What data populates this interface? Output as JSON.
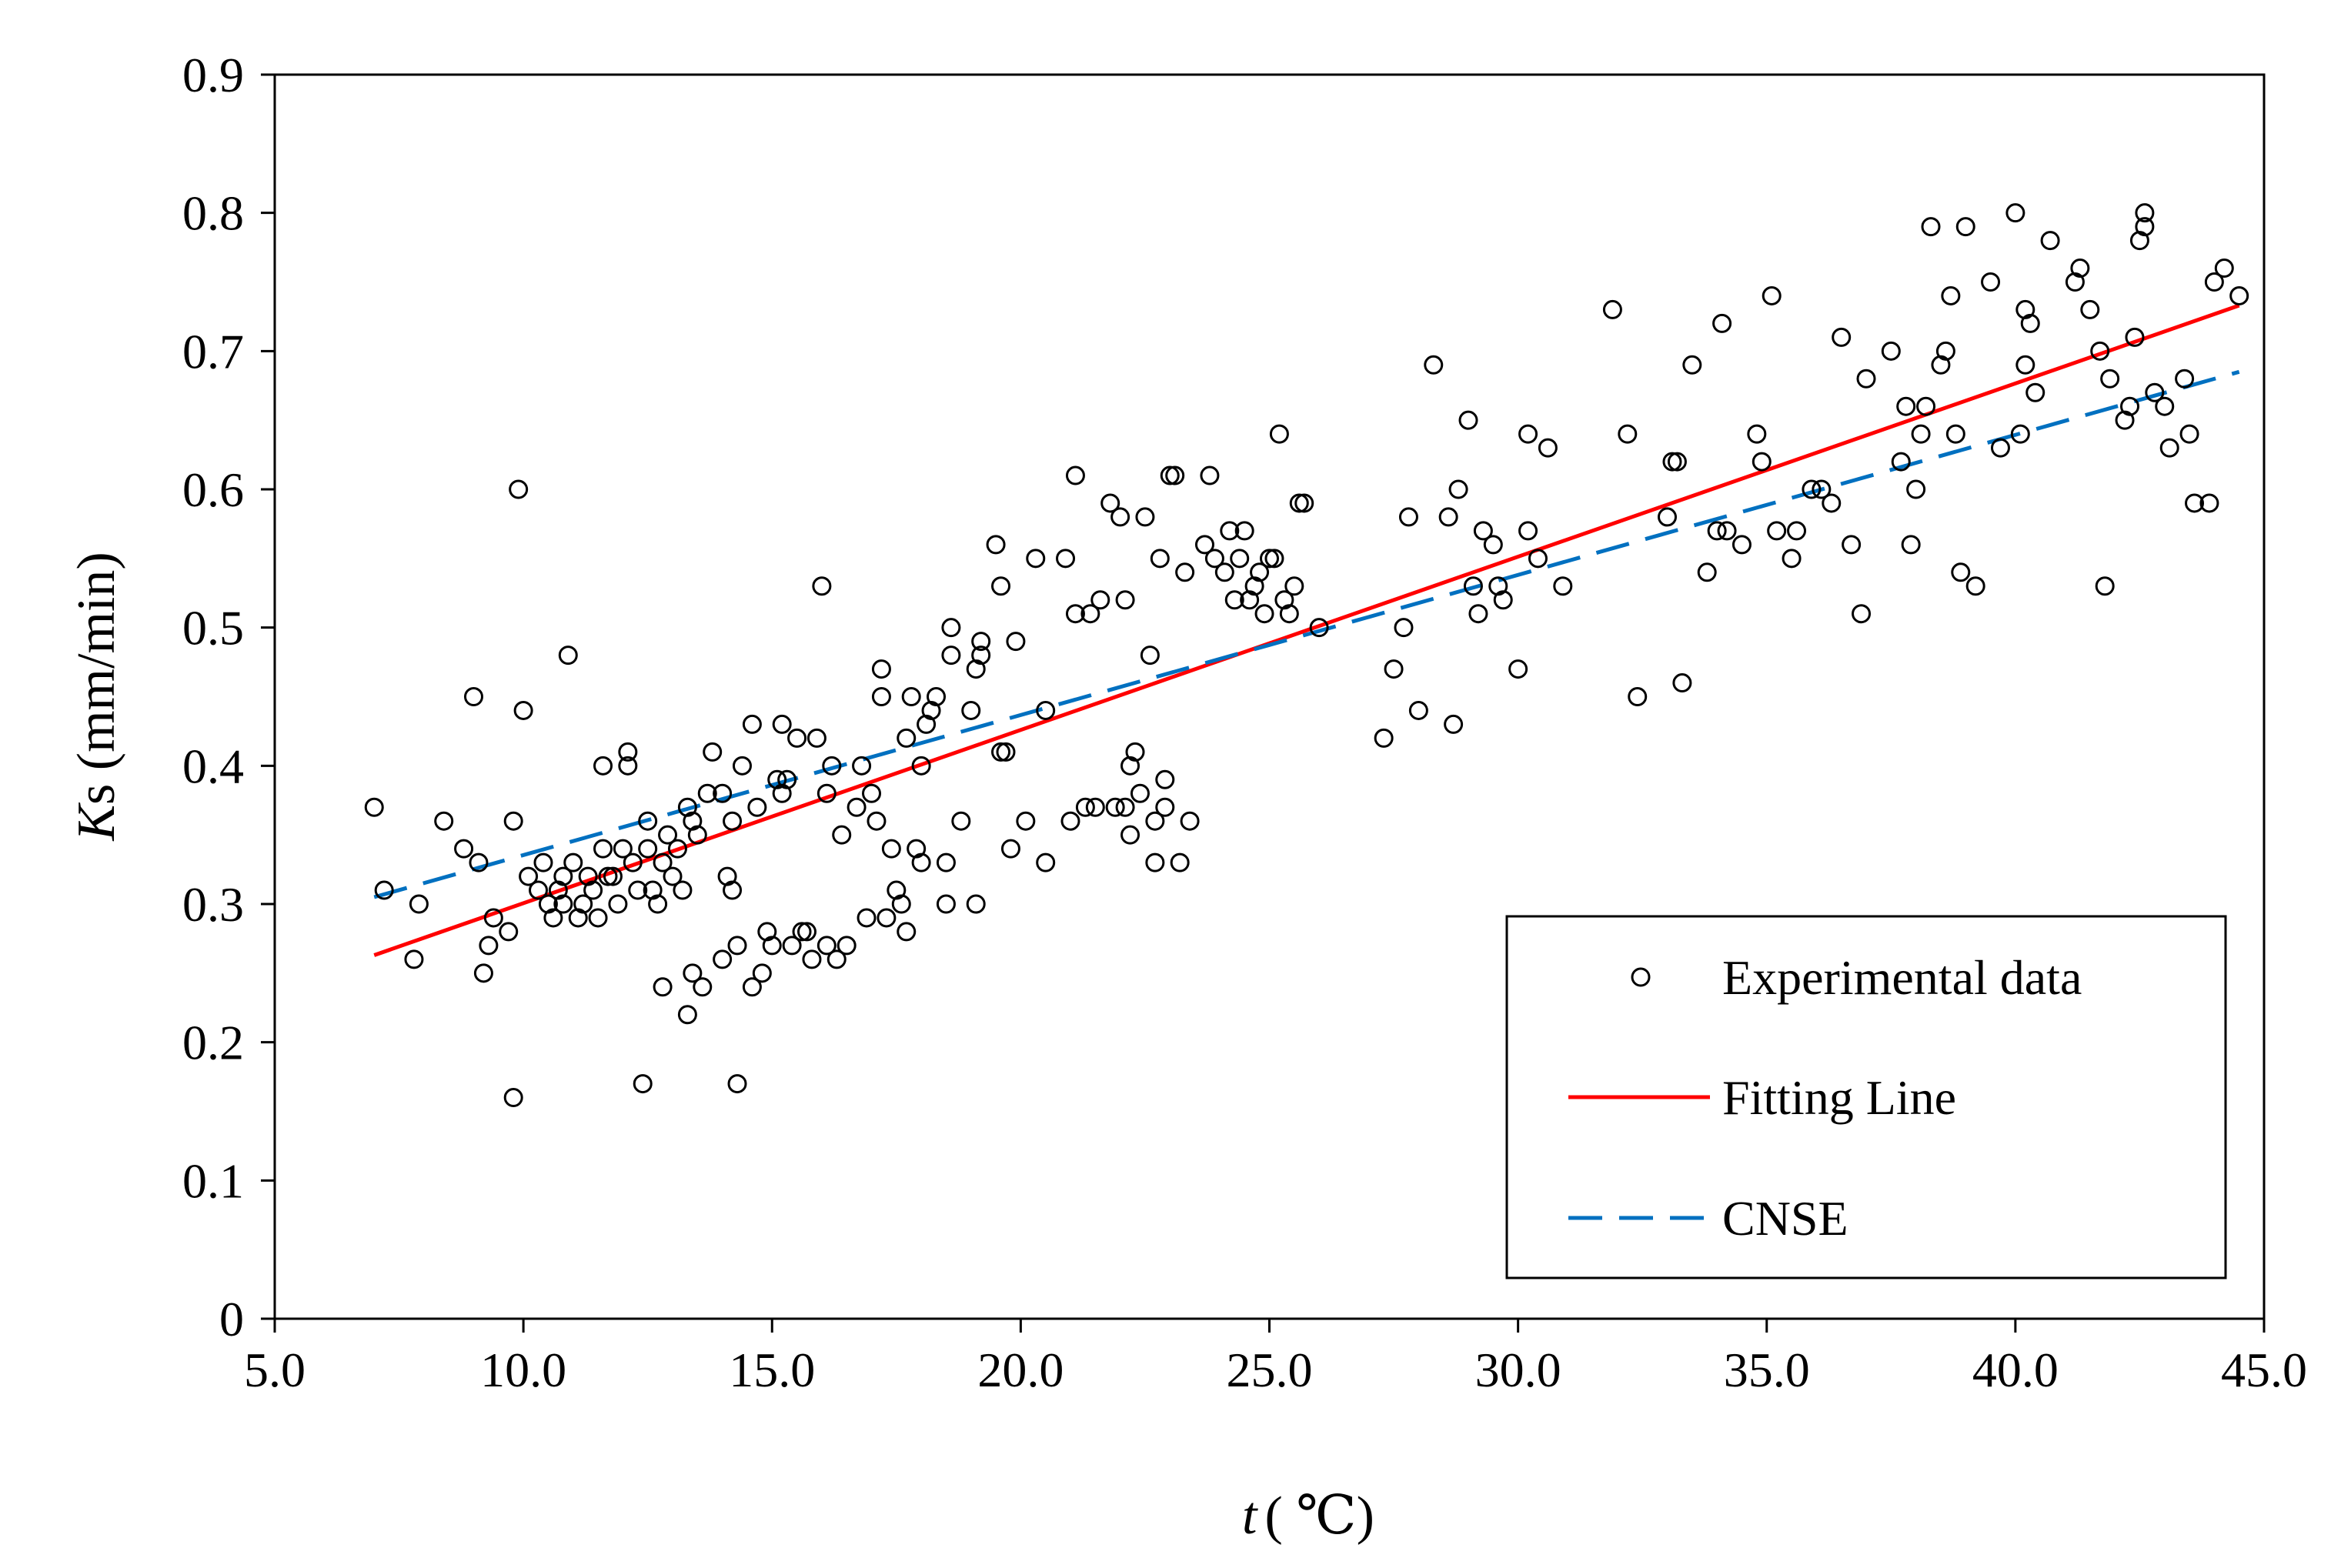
{
  "chart_data": {
    "type": "scatter",
    "title": "",
    "xlabel": {
      "italic": "t",
      "rest": "( ℃)"
    },
    "ylabel": {
      "italic": "K",
      "rest": "s (mm/min)"
    },
    "xlim": [
      5.0,
      45.0
    ],
    "ylim": [
      0,
      0.9
    ],
    "x_ticks": [
      "5.0",
      "10.0",
      "15.0",
      "20.0",
      "25.0",
      "30.0",
      "35.0",
      "40.0",
      "45.0"
    ],
    "y_ticks": [
      "0",
      "0.1",
      "0.2",
      "0.3",
      "0.4",
      "0.5",
      "0.6",
      "0.7",
      "0.8",
      "0.9"
    ],
    "grid": false,
    "legend_position": "bottom-right",
    "colors": {
      "scatter": "#000000",
      "fit": "#ff0000",
      "cnse": "#0070c0",
      "axis": "#000000"
    },
    "series": [
      {
        "name": "Experimental data",
        "kind": "scatter",
        "points": [
          [
            7.0,
            0.37
          ],
          [
            7.2,
            0.31
          ],
          [
            7.8,
            0.26
          ],
          [
            7.9,
            0.3
          ],
          [
            8.4,
            0.36
          ],
          [
            8.8,
            0.34
          ],
          [
            9.0,
            0.45
          ],
          [
            9.1,
            0.33
          ],
          [
            9.2,
            0.25
          ],
          [
            9.3,
            0.27
          ],
          [
            9.4,
            0.29
          ],
          [
            9.7,
            0.28
          ],
          [
            9.8,
            0.16
          ],
          [
            9.8,
            0.36
          ],
          [
            9.9,
            0.6
          ],
          [
            10.0,
            0.44
          ],
          [
            10.1,
            0.32
          ],
          [
            10.3,
            0.31
          ],
          [
            10.4,
            0.33
          ],
          [
            10.5,
            0.3
          ],
          [
            10.6,
            0.29
          ],
          [
            10.7,
            0.31
          ],
          [
            10.8,
            0.3
          ],
          [
            10.8,
            0.32
          ],
          [
            10.9,
            0.48
          ],
          [
            11.0,
            0.33
          ],
          [
            11.1,
            0.29
          ],
          [
            11.2,
            0.3
          ],
          [
            11.3,
            0.32
          ],
          [
            11.4,
            0.31
          ],
          [
            11.5,
            0.29
          ],
          [
            11.6,
            0.34
          ],
          [
            11.6,
            0.4
          ],
          [
            11.7,
            0.32
          ],
          [
            11.8,
            0.32
          ],
          [
            11.9,
            0.3
          ],
          [
            12.0,
            0.34
          ],
          [
            12.1,
            0.4
          ],
          [
            12.1,
            0.41
          ],
          [
            12.2,
            0.33
          ],
          [
            12.3,
            0.31
          ],
          [
            12.4,
            0.17
          ],
          [
            12.5,
            0.36
          ],
          [
            12.5,
            0.34
          ],
          [
            12.6,
            0.31
          ],
          [
            12.7,
            0.3
          ],
          [
            12.8,
            0.24
          ],
          [
            12.8,
            0.33
          ],
          [
            12.9,
            0.35
          ],
          [
            13.0,
            0.32
          ],
          [
            13.1,
            0.34
          ],
          [
            13.2,
            0.31
          ],
          [
            13.3,
            0.37
          ],
          [
            13.3,
            0.22
          ],
          [
            13.4,
            0.25
          ],
          [
            13.4,
            0.36
          ],
          [
            13.5,
            0.35
          ],
          [
            13.6,
            0.24
          ],
          [
            13.7,
            0.38
          ],
          [
            13.8,
            0.41
          ],
          [
            14.0,
            0.26
          ],
          [
            14.0,
            0.38
          ],
          [
            14.1,
            0.32
          ],
          [
            14.2,
            0.36
          ],
          [
            14.2,
            0.31
          ],
          [
            14.3,
            0.27
          ],
          [
            14.3,
            0.17
          ],
          [
            14.4,
            0.4
          ],
          [
            14.6,
            0.24
          ],
          [
            14.6,
            0.43
          ],
          [
            14.7,
            0.37
          ],
          [
            14.8,
            0.25
          ],
          [
            14.9,
            0.28
          ],
          [
            15.0,
            0.27
          ],
          [
            15.1,
            0.39
          ],
          [
            15.2,
            0.43
          ],
          [
            15.2,
            0.38
          ],
          [
            15.3,
            0.39
          ],
          [
            15.4,
            0.27
          ],
          [
            15.5,
            0.42
          ],
          [
            15.6,
            0.28
          ],
          [
            15.7,
            0.28
          ],
          [
            15.8,
            0.26
          ],
          [
            15.9,
            0.42
          ],
          [
            16.0,
            0.53
          ],
          [
            16.1,
            0.27
          ],
          [
            16.1,
            0.38
          ],
          [
            16.2,
            0.4
          ],
          [
            16.3,
            0.26
          ],
          [
            16.4,
            0.35
          ],
          [
            16.5,
            0.27
          ],
          [
            16.7,
            0.37
          ],
          [
            16.8,
            0.4
          ],
          [
            16.9,
            0.29
          ],
          [
            17.0,
            0.38
          ],
          [
            17.1,
            0.36
          ],
          [
            17.2,
            0.45
          ],
          [
            17.2,
            0.47
          ],
          [
            17.3,
            0.29
          ],
          [
            17.4,
            0.34
          ],
          [
            17.5,
            0.31
          ],
          [
            17.6,
            0.3
          ],
          [
            17.7,
            0.42
          ],
          [
            17.7,
            0.28
          ],
          [
            17.8,
            0.45
          ],
          [
            17.9,
            0.34
          ],
          [
            18.0,
            0.33
          ],
          [
            18.0,
            0.4
          ],
          [
            18.1,
            0.43
          ],
          [
            18.2,
            0.44
          ],
          [
            18.3,
            0.45
          ],
          [
            18.5,
            0.33
          ],
          [
            18.5,
            0.3
          ],
          [
            18.6,
            0.48
          ],
          [
            18.6,
            0.5
          ],
          [
            18.8,
            0.36
          ],
          [
            19.0,
            0.44
          ],
          [
            19.1,
            0.3
          ],
          [
            19.1,
            0.47
          ],
          [
            19.2,
            0.48
          ],
          [
            19.2,
            0.49
          ],
          [
            19.5,
            0.56
          ],
          [
            19.6,
            0.41
          ],
          [
            19.6,
            0.53
          ],
          [
            19.7,
            0.41
          ],
          [
            19.8,
            0.34
          ],
          [
            19.9,
            0.49
          ],
          [
            20.1,
            0.36
          ],
          [
            20.3,
            0.55
          ],
          [
            20.5,
            0.33
          ],
          [
            20.5,
            0.44
          ],
          [
            20.9,
            0.55
          ],
          [
            21.0,
            0.36
          ],
          [
            21.1,
            0.51
          ],
          [
            21.1,
            0.61
          ],
          [
            21.3,
            0.37
          ],
          [
            21.4,
            0.51
          ],
          [
            21.5,
            0.37
          ],
          [
            21.6,
            0.52
          ],
          [
            21.8,
            0.59
          ],
          [
            21.9,
            0.37
          ],
          [
            22.0,
            0.58
          ],
          [
            22.1,
            0.37
          ],
          [
            22.1,
            0.52
          ],
          [
            22.2,
            0.4
          ],
          [
            22.2,
            0.35
          ],
          [
            22.3,
            0.41
          ],
          [
            22.4,
            0.38
          ],
          [
            22.5,
            0.58
          ],
          [
            22.6,
            0.48
          ],
          [
            22.7,
            0.33
          ],
          [
            22.7,
            0.36
          ],
          [
            22.8,
            0.55
          ],
          [
            22.9,
            0.39
          ],
          [
            22.9,
            0.37
          ],
          [
            23.0,
            0.61
          ],
          [
            23.1,
            0.61
          ],
          [
            23.2,
            0.33
          ],
          [
            23.3,
            0.54
          ],
          [
            23.4,
            0.36
          ],
          [
            23.7,
            0.56
          ],
          [
            23.8,
            0.61
          ],
          [
            23.9,
            0.55
          ],
          [
            24.1,
            0.54
          ],
          [
            24.2,
            0.57
          ],
          [
            24.3,
            0.52
          ],
          [
            24.4,
            0.55
          ],
          [
            24.5,
            0.57
          ],
          [
            24.6,
            0.52
          ],
          [
            24.7,
            0.53
          ],
          [
            24.8,
            0.54
          ],
          [
            24.9,
            0.51
          ],
          [
            25.0,
            0.55
          ],
          [
            25.1,
            0.55
          ],
          [
            25.2,
            0.64
          ],
          [
            25.3,
            0.52
          ],
          [
            25.4,
            0.51
          ],
          [
            25.5,
            0.53
          ],
          [
            25.6,
            0.59
          ],
          [
            25.7,
            0.59
          ],
          [
            26.0,
            0.5
          ],
          [
            27.3,
            0.42
          ],
          [
            27.5,
            0.47
          ],
          [
            27.7,
            0.5
          ],
          [
            27.8,
            0.58
          ],
          [
            28.0,
            0.44
          ],
          [
            28.3,
            0.69
          ],
          [
            28.6,
            0.58
          ],
          [
            28.7,
            0.43
          ],
          [
            28.8,
            0.6
          ],
          [
            29.0,
            0.65
          ],
          [
            29.1,
            0.53
          ],
          [
            29.2,
            0.51
          ],
          [
            29.3,
            0.57
          ],
          [
            29.5,
            0.56
          ],
          [
            29.6,
            0.53
          ],
          [
            29.7,
            0.52
          ],
          [
            30.0,
            0.47
          ],
          [
            30.2,
            0.64
          ],
          [
            30.2,
            0.57
          ],
          [
            30.4,
            0.55
          ],
          [
            30.6,
            0.63
          ],
          [
            30.9,
            0.53
          ],
          [
            31.9,
            0.73
          ],
          [
            32.2,
            0.64
          ],
          [
            32.4,
            0.45
          ],
          [
            33.0,
            0.58
          ],
          [
            33.1,
            0.62
          ],
          [
            33.2,
            0.62
          ],
          [
            33.3,
            0.46
          ],
          [
            33.5,
            0.69
          ],
          [
            33.8,
            0.54
          ],
          [
            34.0,
            0.57
          ],
          [
            34.1,
            0.72
          ],
          [
            34.2,
            0.57
          ],
          [
            34.5,
            0.56
          ],
          [
            34.8,
            0.64
          ],
          [
            34.9,
            0.62
          ],
          [
            35.1,
            0.74
          ],
          [
            35.2,
            0.57
          ],
          [
            35.5,
            0.55
          ],
          [
            35.6,
            0.57
          ],
          [
            35.9,
            0.6
          ],
          [
            36.1,
            0.6
          ],
          [
            36.3,
            0.59
          ],
          [
            36.5,
            0.71
          ],
          [
            36.7,
            0.56
          ],
          [
            36.9,
            0.51
          ],
          [
            37.0,
            0.68
          ],
          [
            37.5,
            0.7
          ],
          [
            37.7,
            0.62
          ],
          [
            37.8,
            0.66
          ],
          [
            37.9,
            0.56
          ],
          [
            38.0,
            0.6
          ],
          [
            38.1,
            0.64
          ],
          [
            38.2,
            0.66
          ],
          [
            38.3,
            0.79
          ],
          [
            38.5,
            0.69
          ],
          [
            38.6,
            0.7
          ],
          [
            38.7,
            0.74
          ],
          [
            38.8,
            0.64
          ],
          [
            38.9,
            0.54
          ],
          [
            39.0,
            0.79
          ],
          [
            39.2,
            0.53
          ],
          [
            39.5,
            0.75
          ],
          [
            39.7,
            0.63
          ],
          [
            40.0,
            0.8
          ],
          [
            40.1,
            0.64
          ],
          [
            40.2,
            0.73
          ],
          [
            40.2,
            0.69
          ],
          [
            40.3,
            0.72
          ],
          [
            40.4,
            0.67
          ],
          [
            40.7,
            0.78
          ],
          [
            41.2,
            0.75
          ],
          [
            41.3,
            0.76
          ],
          [
            41.5,
            0.73
          ],
          [
            41.7,
            0.7
          ],
          [
            41.8,
            0.53
          ],
          [
            41.9,
            0.68
          ],
          [
            42.2,
            0.65
          ],
          [
            42.3,
            0.66
          ],
          [
            42.4,
            0.71
          ],
          [
            42.5,
            0.78
          ],
          [
            42.6,
            0.8
          ],
          [
            42.6,
            0.79
          ],
          [
            42.8,
            0.67
          ],
          [
            43.0,
            0.66
          ],
          [
            43.1,
            0.63
          ],
          [
            43.4,
            0.68
          ],
          [
            43.5,
            0.64
          ],
          [
            43.6,
            0.59
          ],
          [
            43.9,
            0.59
          ],
          [
            44.0,
            0.75
          ],
          [
            44.2,
            0.76
          ],
          [
            44.5,
            0.74
          ]
        ]
      },
      {
        "name": "Fitting Line",
        "kind": "line",
        "style": "solid",
        "x": [
          7.0,
          44.5
        ],
        "y": [
          0.263,
          0.733
        ]
      },
      {
        "name": "CNSE",
        "kind": "line",
        "style": "dashed",
        "x": [
          7.0,
          44.5
        ],
        "y": [
          0.305,
          0.685
        ]
      }
    ]
  }
}
